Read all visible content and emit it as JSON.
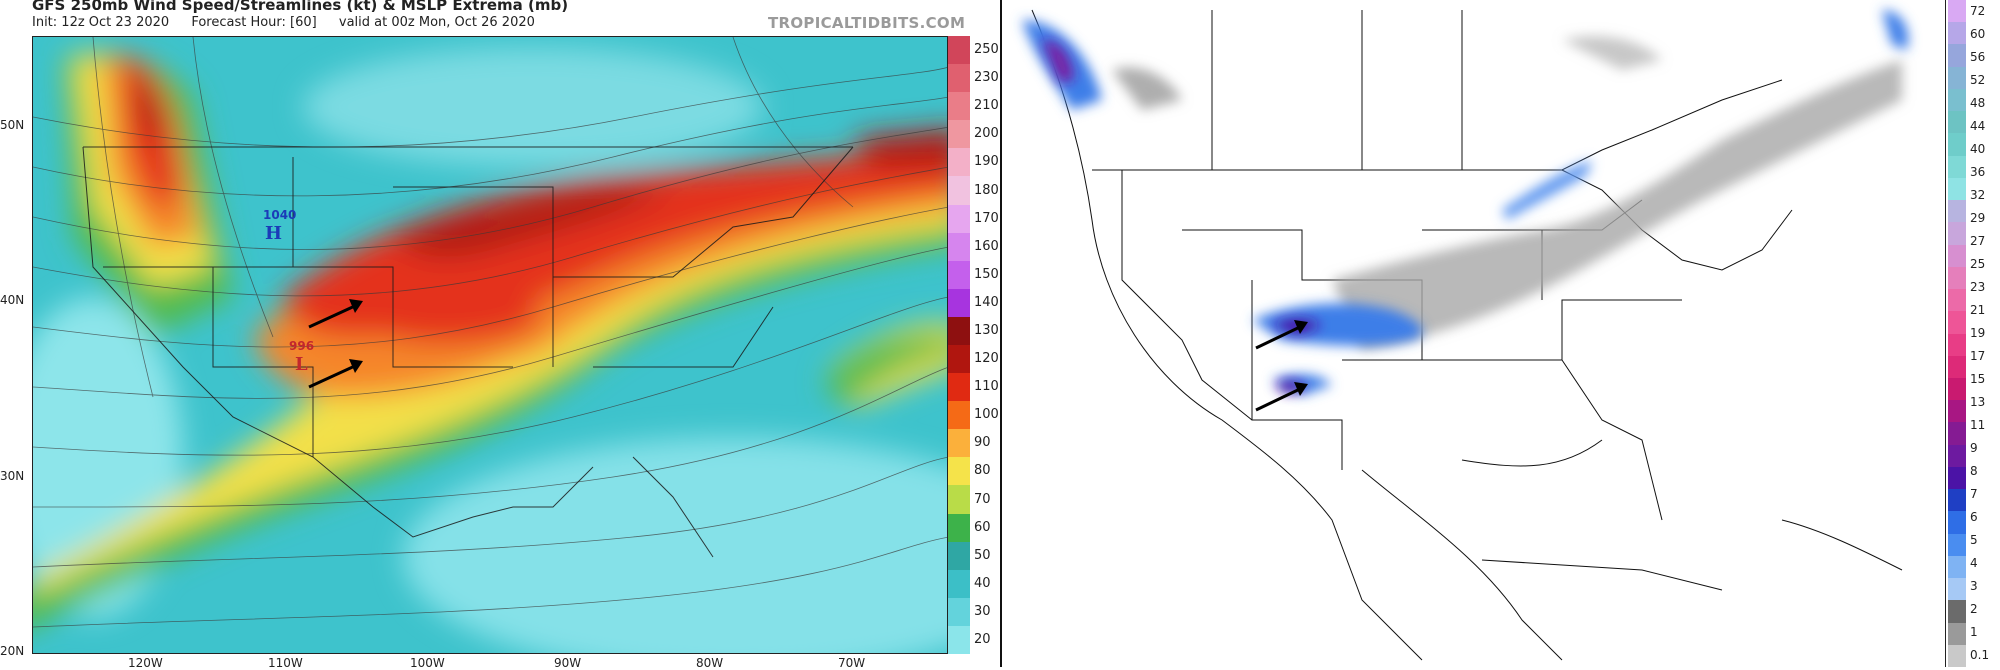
{
  "header": {
    "title": "GFS 250mb Wind Speed/Streamlines (kt) & MSLP Extrema (mb)",
    "init": "Init: 12z Oct 23 2020",
    "forecast_hour": "Forecast Hour: [60]",
    "valid": "valid at 00z Mon, Oct 26 2020",
    "credit": "TROPICALTIDBITS.COM"
  },
  "left_map": {
    "lat_labels": [
      "50N",
      "40N",
      "30N",
      "20N"
    ],
    "lon_labels": [
      "120W",
      "110W",
      "100W",
      "90W",
      "80W",
      "70W"
    ],
    "pressure_high": {
      "value": "1040",
      "symbol": "H",
      "color": "#1b3bb8"
    },
    "pressure_low": {
      "value": "996",
      "symbol": "L",
      "color": "#c2272d"
    },
    "arrows": [
      "jet-arrow-upper",
      "jet-arrow-lower"
    ]
  },
  "wind_scale": {
    "unit": "kt",
    "labels": [
      "250",
      "230",
      "210",
      "200",
      "190",
      "180",
      "170",
      "160",
      "150",
      "140",
      "130",
      "120",
      "110",
      "100",
      "90",
      "80",
      "70",
      "60",
      "50",
      "40",
      "30",
      "20"
    ],
    "colors": [
      "#d1455a",
      "#e0606f",
      "#ea7d88",
      "#ef97a0",
      "#f3b0c8",
      "#f1c2e0",
      "#e6a6ef",
      "#d685ee",
      "#c460ec",
      "#a734df",
      "#8e1010",
      "#b0160f",
      "#e02a12",
      "#f56a16",
      "#fbb03b",
      "#f5e34a",
      "#b9dc48",
      "#3db24a",
      "#2fa7a4",
      "#3cbfc7",
      "#63d3dc",
      "#8be5ea"
    ]
  },
  "precip_scale": {
    "labels": [
      "72",
      "60",
      "56",
      "52",
      "48",
      "44",
      "40",
      "36",
      "32",
      "29",
      "27",
      "25",
      "23",
      "21",
      "19",
      "17",
      "15",
      "13",
      "11",
      "9",
      "8",
      "7",
      "6",
      "5",
      "4",
      "3",
      "2",
      "1",
      "0.1"
    ],
    "colors": [
      "#d9a9f3",
      "#b6a7e8",
      "#96a6dc",
      "#86b4d5",
      "#7abfcf",
      "#6dc3c3",
      "#6fcdca",
      "#7fd9d6",
      "#8fe3e4",
      "#b7b4e0",
      "#c8a6dc",
      "#d78fd0",
      "#e57fbb",
      "#ec6aa8",
      "#ee5597",
      "#e83d86",
      "#dd2a78",
      "#c91a70",
      "#a81783",
      "#851b93",
      "#6d1aa0",
      "#4b13a6",
      "#1f3fc4",
      "#2f6ee6",
      "#4a8df0",
      "#7fb3f3",
      "#a6c9f5",
      "#6b6b6b",
      "#9a9a9a",
      "#c9c9c9"
    ]
  }
}
